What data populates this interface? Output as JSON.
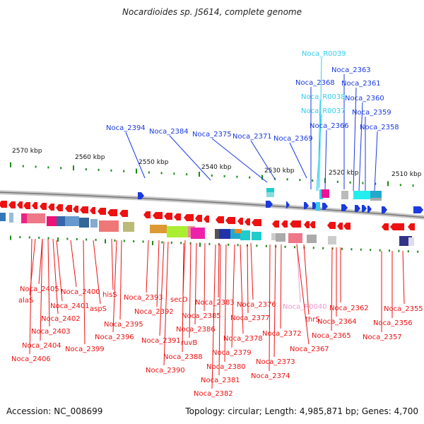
{
  "title": "Nocardioides sp. JS614, complete genome",
  "footer": {
    "accession": "Accession: NC_008699",
    "topology": "Topology: circular; Length: 4,985,871 bp; Genes: 4,700"
  },
  "colors": {
    "reverse_strand": "#ee1111",
    "forward_strand": "#1a3ae0",
    "rna": "#33ccee",
    "pseudo": "#ee99cc",
    "backbone": "#9a9a9a",
    "tick": "#1a8a1a"
  },
  "scale_labels": [
    "2570 kbp",
    "2560 kbp",
    "2550 kbp",
    "2540 kbp",
    "2530 kbp",
    "2520 kbp",
    "2510 kbp"
  ],
  "top_labels": [
    {
      "text": "Noca_R0039",
      "color": "#33ccee"
    },
    {
      "text": "Noca_2363",
      "color": "#1a3ae0"
    },
    {
      "text": "Noca_2368",
      "color": "#1a3ae0"
    },
    {
      "text": "Noca_2361",
      "color": "#1a3ae0"
    },
    {
      "text": "Noca_R0038",
      "color": "#33ccee"
    },
    {
      "text": "Noca_2360",
      "color": "#1a3ae0"
    },
    {
      "text": "Noca_R0037",
      "color": "#33ccee"
    },
    {
      "text": "Noca_2359",
      "color": "#1a3ae0"
    },
    {
      "text": "Noca_2366",
      "color": "#1a3ae0"
    },
    {
      "text": "Noca_2358",
      "color": "#1a3ae0"
    },
    {
      "text": "Noca_2394",
      "color": "#1a3ae0"
    },
    {
      "text": "Noca_2384",
      "color": "#1a3ae0"
    },
    {
      "text": "Noca_2375",
      "color": "#1a3ae0"
    },
    {
      "text": "Noca_2371",
      "color": "#1a3ae0"
    },
    {
      "text": "Noca_2369",
      "color": "#1a3ae0"
    }
  ],
  "bottom_labels": [
    {
      "text": "Noca_2405",
      "color": "#ee1111"
    },
    {
      "text": "Noca_2400",
      "color": "#ee1111"
    },
    {
      "text": "hisS",
      "color": "#ee1111"
    },
    {
      "text": "alaS",
      "color": "#ee1111"
    },
    {
      "text": "Noca_2393",
      "color": "#ee1111"
    },
    {
      "text": "Noca_2401",
      "color": "#ee1111"
    },
    {
      "text": "aspS",
      "color": "#ee1111"
    },
    {
      "text": "secD",
      "color": "#ee1111"
    },
    {
      "text": "Noca_2383",
      "color": "#ee1111"
    },
    {
      "text": "Noca_2376",
      "color": "#ee1111"
    },
    {
      "text": "Noca_R0040",
      "color": "#ee99cc"
    },
    {
      "text": "Noca_2362",
      "color": "#ee1111"
    },
    {
      "text": "Noca_2355",
      "color": "#ee1111"
    },
    {
      "text": "Noca_2392",
      "color": "#ee1111"
    },
    {
      "text": "Noca_2385",
      "color": "#ee1111"
    },
    {
      "text": "Noca_2402",
      "color": "#ee1111"
    },
    {
      "text": "Noca_2377",
      "color": "#ee1111"
    },
    {
      "text": "thrS",
      "color": "#ee1111"
    },
    {
      "text": "Noca_2364",
      "color": "#ee1111"
    },
    {
      "text": "Noca_2395",
      "color": "#ee1111"
    },
    {
      "text": "Noca_2386",
      "color": "#ee1111"
    },
    {
      "text": "Noca_2356",
      "color": "#ee1111"
    },
    {
      "text": "Noca_2403",
      "color": "#ee1111"
    },
    {
      "text": "Noca_2372",
      "color": "#ee1111"
    },
    {
      "text": "Noca_2396",
      "color": "#ee1111"
    },
    {
      "text": "Noca_2378",
      "color": "#ee1111"
    },
    {
      "text": "Noca_2365",
      "color": "#ee1111"
    },
    {
      "text": "Noca_2357",
      "color": "#ee1111"
    },
    {
      "text": "Noca_2391",
      "color": "#ee1111"
    },
    {
      "text": "ruvB",
      "color": "#ee1111"
    },
    {
      "text": "Noca_2404",
      "color": "#ee1111"
    },
    {
      "text": "Noca_2399",
      "color": "#ee1111"
    },
    {
      "text": "Noca_2379",
      "color": "#ee1111"
    },
    {
      "text": "Noca_2367",
      "color": "#ee1111"
    },
    {
      "text": "Noca_2388",
      "color": "#ee1111"
    },
    {
      "text": "Noca_2406",
      "color": "#ee1111"
    },
    {
      "text": "Noca_2373",
      "color": "#ee1111"
    },
    {
      "text": "Noca_2380",
      "color": "#ee1111"
    },
    {
      "text": "Noca_2390",
      "color": "#ee1111"
    },
    {
      "text": "Noca_2374",
      "color": "#ee1111"
    },
    {
      "text": "Noca_2381",
      "color": "#ee1111"
    },
    {
      "text": "Noca_2382",
      "color": "#ee1111"
    }
  ]
}
